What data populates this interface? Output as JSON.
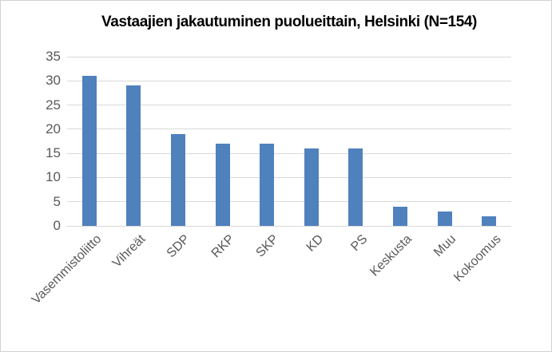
{
  "chart_data": {
    "type": "bar",
    "title": "Vastaajien jakautuminen puolueittain, Helsinki (N=154)",
    "categories": [
      "Vasemmistoliitto",
      "Vihreät",
      "SDP",
      "RKP",
      "SKP",
      "KD",
      "PS",
      "Keskusta",
      "Muu",
      "Kokoomus"
    ],
    "values": [
      31,
      29,
      19,
      17,
      17,
      16,
      16,
      4,
      3,
      2
    ],
    "xlabel": "",
    "ylabel": "",
    "ylim": [
      0,
      35
    ],
    "yticks": [
      0,
      5,
      10,
      15,
      20,
      25,
      30,
      35
    ],
    "grid": true,
    "legend_position": "none",
    "colors": {
      "bar": "#4f81bd",
      "gridline": "#d9d9d9",
      "axis_text": "#595959",
      "title_text": "#000000",
      "background": "#ffffff",
      "frame_border": "#d0d0d0"
    }
  }
}
